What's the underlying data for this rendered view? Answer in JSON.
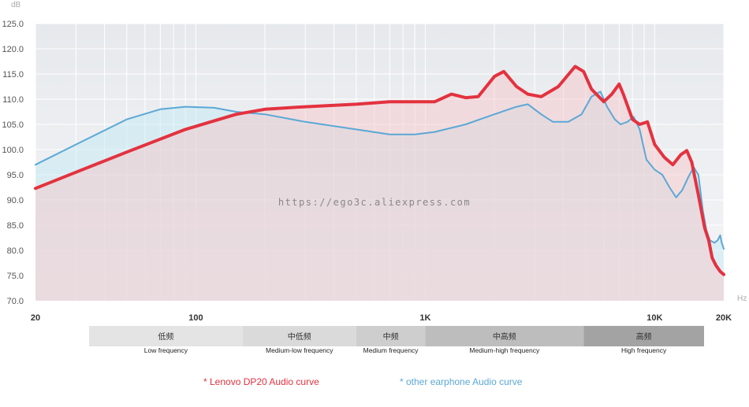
{
  "chart_data": {
    "type": "line",
    "xscale": "log",
    "xlim": [
      20,
      20000
    ],
    "ylim": [
      70,
      125
    ],
    "ylabel": "dB",
    "xlabel": "Hz",
    "grid": true,
    "y_ticks": [
      "70.0",
      "75.0",
      "80.0",
      "85.0",
      "90.0",
      "95.0",
      "100.0",
      "105.0",
      "110.0",
      "115.0",
      "120.0",
      "125.0"
    ],
    "x_ticks": [
      {
        "value": 20,
        "label": "20"
      },
      {
        "value": 100,
        "label": "100"
      },
      {
        "value": 1000,
        "label": "1K"
      },
      {
        "value": 10000,
        "label": "10K"
      },
      {
        "value": 20000,
        "label": "20K"
      }
    ],
    "watermark": "https://ego3c.aliexpress.com",
    "series": [
      {
        "name": "* Lenovo DP20  Audio curve",
        "color": "#e3323f",
        "points": [
          [
            20,
            92.3
          ],
          [
            30,
            95.5
          ],
          [
            50,
            99.5
          ],
          [
            90,
            104
          ],
          [
            150,
            107
          ],
          [
            200,
            108
          ],
          [
            300,
            108.5
          ],
          [
            500,
            109
          ],
          [
            700,
            109.5
          ],
          [
            900,
            109.5
          ],
          [
            1100,
            109.5
          ],
          [
            1300,
            111
          ],
          [
            1500,
            110.3
          ],
          [
            1700,
            110.5
          ],
          [
            2000,
            114.5
          ],
          [
            2200,
            115.5
          ],
          [
            2500,
            112.5
          ],
          [
            2800,
            111
          ],
          [
            3200,
            110.5
          ],
          [
            3800,
            112.5
          ],
          [
            4500,
            116.5
          ],
          [
            4900,
            115.5
          ],
          [
            5300,
            112
          ],
          [
            6000,
            109.5
          ],
          [
            6500,
            111
          ],
          [
            7000,
            113
          ],
          [
            7300,
            111
          ],
          [
            8000,
            106
          ],
          [
            8600,
            105
          ],
          [
            9300,
            105.5
          ],
          [
            10000,
            101
          ],
          [
            11000,
            98.5
          ],
          [
            12000,
            97
          ],
          [
            13000,
            99
          ],
          [
            13800,
            99.8
          ],
          [
            14500,
            97.5
          ],
          [
            15500,
            91
          ],
          [
            16500,
            84.5
          ],
          [
            17200,
            82
          ],
          [
            17800,
            78.5
          ],
          [
            18500,
            77
          ],
          [
            19300,
            75.8
          ],
          [
            20000,
            75.2
          ]
        ]
      },
      {
        "name": "* other earphone Audio curve",
        "color": "#5ba8d6",
        "points": [
          [
            20,
            97
          ],
          [
            30,
            101
          ],
          [
            50,
            106
          ],
          [
            70,
            108
          ],
          [
            90,
            108.5
          ],
          [
            120,
            108.3
          ],
          [
            150,
            107.5
          ],
          [
            200,
            107
          ],
          [
            300,
            105.5
          ],
          [
            500,
            104
          ],
          [
            700,
            103
          ],
          [
            900,
            103
          ],
          [
            1100,
            103.5
          ],
          [
            1500,
            105
          ],
          [
            2000,
            107
          ],
          [
            2500,
            108.5
          ],
          [
            2800,
            109
          ],
          [
            3200,
            107
          ],
          [
            3600,
            105.5
          ],
          [
            4200,
            105.5
          ],
          [
            4800,
            107
          ],
          [
            5300,
            110.5
          ],
          [
            5800,
            111.5
          ],
          [
            6200,
            108.5
          ],
          [
            6700,
            106
          ],
          [
            7100,
            105
          ],
          [
            7600,
            105.5
          ],
          [
            8100,
            106.5
          ],
          [
            8600,
            104
          ],
          [
            9200,
            98
          ],
          [
            10000,
            96
          ],
          [
            10800,
            95
          ],
          [
            11600,
            92.5
          ],
          [
            12400,
            90.5
          ],
          [
            13200,
            92
          ],
          [
            14000,
            94.5
          ],
          [
            14800,
            96.5
          ],
          [
            15500,
            95
          ],
          [
            16200,
            88
          ],
          [
            16800,
            84
          ],
          [
            17400,
            82
          ],
          [
            18200,
            81.5
          ],
          [
            18800,
            82
          ],
          [
            19300,
            83
          ],
          [
            19600,
            81.5
          ],
          [
            20000,
            80.3
          ]
        ]
      }
    ],
    "bands": [
      {
        "cn": "低频",
        "en": "Low frequency",
        "from": 20,
        "to": 160,
        "color": "#e4e4e4"
      },
      {
        "cn": "中低频",
        "en": "Medium-low frequency",
        "from": 160,
        "to": 500,
        "color": "#dadada"
      },
      {
        "cn": "中频",
        "en": "Medium frequency",
        "from": 500,
        "to": 1000,
        "color": "#cecece"
      },
      {
        "cn": "中高频",
        "en": "Medium-high frequency",
        "from": 1000,
        "to": 4900,
        "color": "#bdbdbd"
      },
      {
        "cn": "高频",
        "en": "High frequency",
        "from": 4900,
        "to": 16000,
        "color": "#a3a3a3"
      }
    ]
  }
}
